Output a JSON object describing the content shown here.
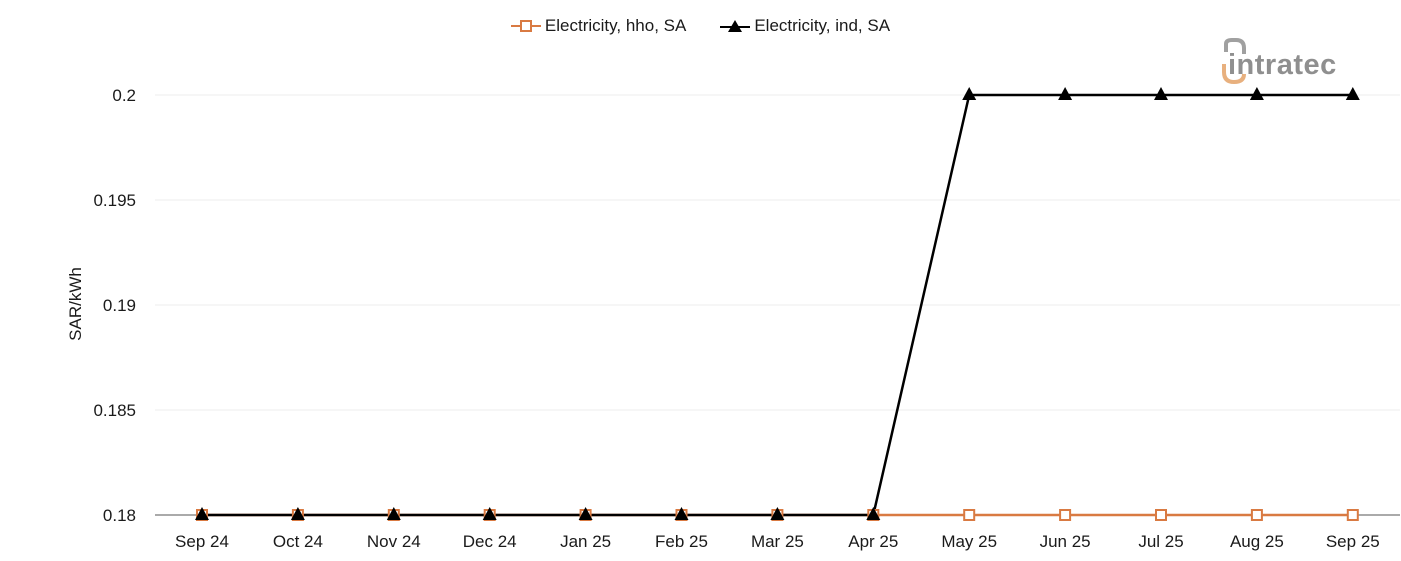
{
  "legend": {
    "items": [
      {
        "label": "Electricity, hho, SA",
        "color": "#d97a42",
        "marker": "hollow-square"
      },
      {
        "label": "Electricity, ind, SA",
        "color": "#000000",
        "marker": "filled-triangle"
      }
    ]
  },
  "logo": {
    "text": "intratec",
    "accent_color": "#e8b07e",
    "text_color": "#8f8f8f"
  },
  "axes": {
    "ylabel": "SAR/kWh",
    "yticks": [
      "0.2",
      "0.195",
      "0.19",
      "0.185",
      "0.18"
    ],
    "xticks": [
      "Sep 24",
      "Oct 24",
      "Nov 24",
      "Dec 24",
      "Jan 25",
      "Feb 25",
      "Mar 25",
      "Apr 25",
      "May 25",
      "Jun 25",
      "Jul 25",
      "Aug 25",
      "Sep 25"
    ]
  },
  "chart_data": {
    "type": "line",
    "title": "",
    "xlabel": "",
    "ylabel": "SAR/kWh",
    "x": [
      "Sep 24",
      "Oct 24",
      "Nov 24",
      "Dec 24",
      "Jan 25",
      "Feb 25",
      "Mar 25",
      "Apr 25",
      "May 25",
      "Jun 25",
      "Jul 25",
      "Aug 25",
      "Sep 25"
    ],
    "series": [
      {
        "name": "Electricity, hho, SA",
        "color": "#d97a42",
        "marker": "hollow-square",
        "values": [
          0.18,
          0.18,
          0.18,
          0.18,
          0.18,
          0.18,
          0.18,
          0.18,
          0.18,
          0.18,
          0.18,
          0.18,
          0.18
        ]
      },
      {
        "name": "Electricity, ind, SA",
        "color": "#000000",
        "marker": "filled-triangle",
        "values": [
          0.18,
          0.18,
          0.18,
          0.18,
          0.18,
          0.18,
          0.18,
          0.18,
          0.2,
          0.2,
          0.2,
          0.2,
          0.2
        ]
      }
    ],
    "ylim": [
      0.18,
      0.2
    ],
    "yticks": [
      0.18,
      0.185,
      0.19,
      0.195,
      0.2
    ],
    "grid": true,
    "legend_position": "top-center"
  }
}
